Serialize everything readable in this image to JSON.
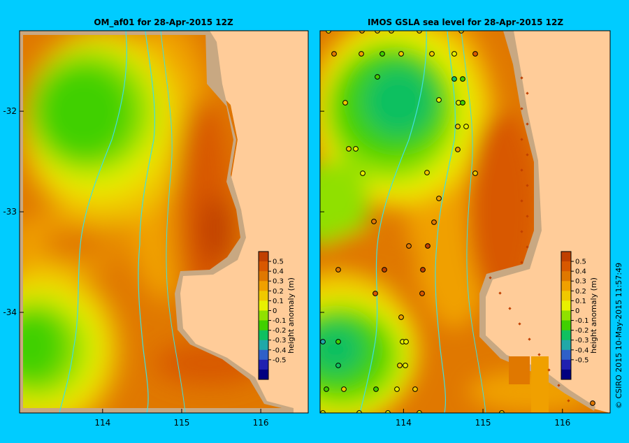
{
  "panels": [
    {
      "id": "left",
      "title": "OM_af01  for 28-Apr-2015 12Z",
      "obs": false
    },
    {
      "id": "right",
      "title": "IMOS GSLA sea level  for 28-Apr-2015 12Z",
      "obs": true
    }
  ],
  "axes": {
    "lon_range": [
      112.95,
      116.6
    ],
    "lat_range": [
      -35.0,
      -31.2
    ],
    "lon_ticks": [
      {
        "value": 114,
        "label": "114"
      },
      {
        "value": 115,
        "label": "115"
      },
      {
        "value": 116,
        "label": "116"
      }
    ],
    "lat_ticks": [
      {
        "value": -32,
        "label": "-32"
      },
      {
        "value": -33,
        "label": "-33"
      },
      {
        "value": -34,
        "label": "-34"
      }
    ]
  },
  "colorbar": {
    "label": "height anomaly (m)",
    "values": [
      "0.5",
      "0.4",
      "0.3",
      "0.2",
      "0.1",
      "0",
      "-0.1",
      "-0.2",
      "-0.3",
      "-0.4",
      "-0.5"
    ],
    "colors": [
      "#c04000",
      "#d85800",
      "#e07800",
      "#f0a000",
      "#f0c800",
      "#e8f000",
      "#90e000",
      "#40d000",
      "#10c060",
      "#20a8a8",
      "#3060c8",
      "#2020b0",
      "#000080"
    ]
  },
  "land_color": "#ffcc99",
  "coast_mask_color": "#c8a882",
  "bathy_color": "#40e0e0",
  "background_color": "#00ccff",
  "credit": "© CSIRO 2015   10-May-2015 11:57:49"
}
